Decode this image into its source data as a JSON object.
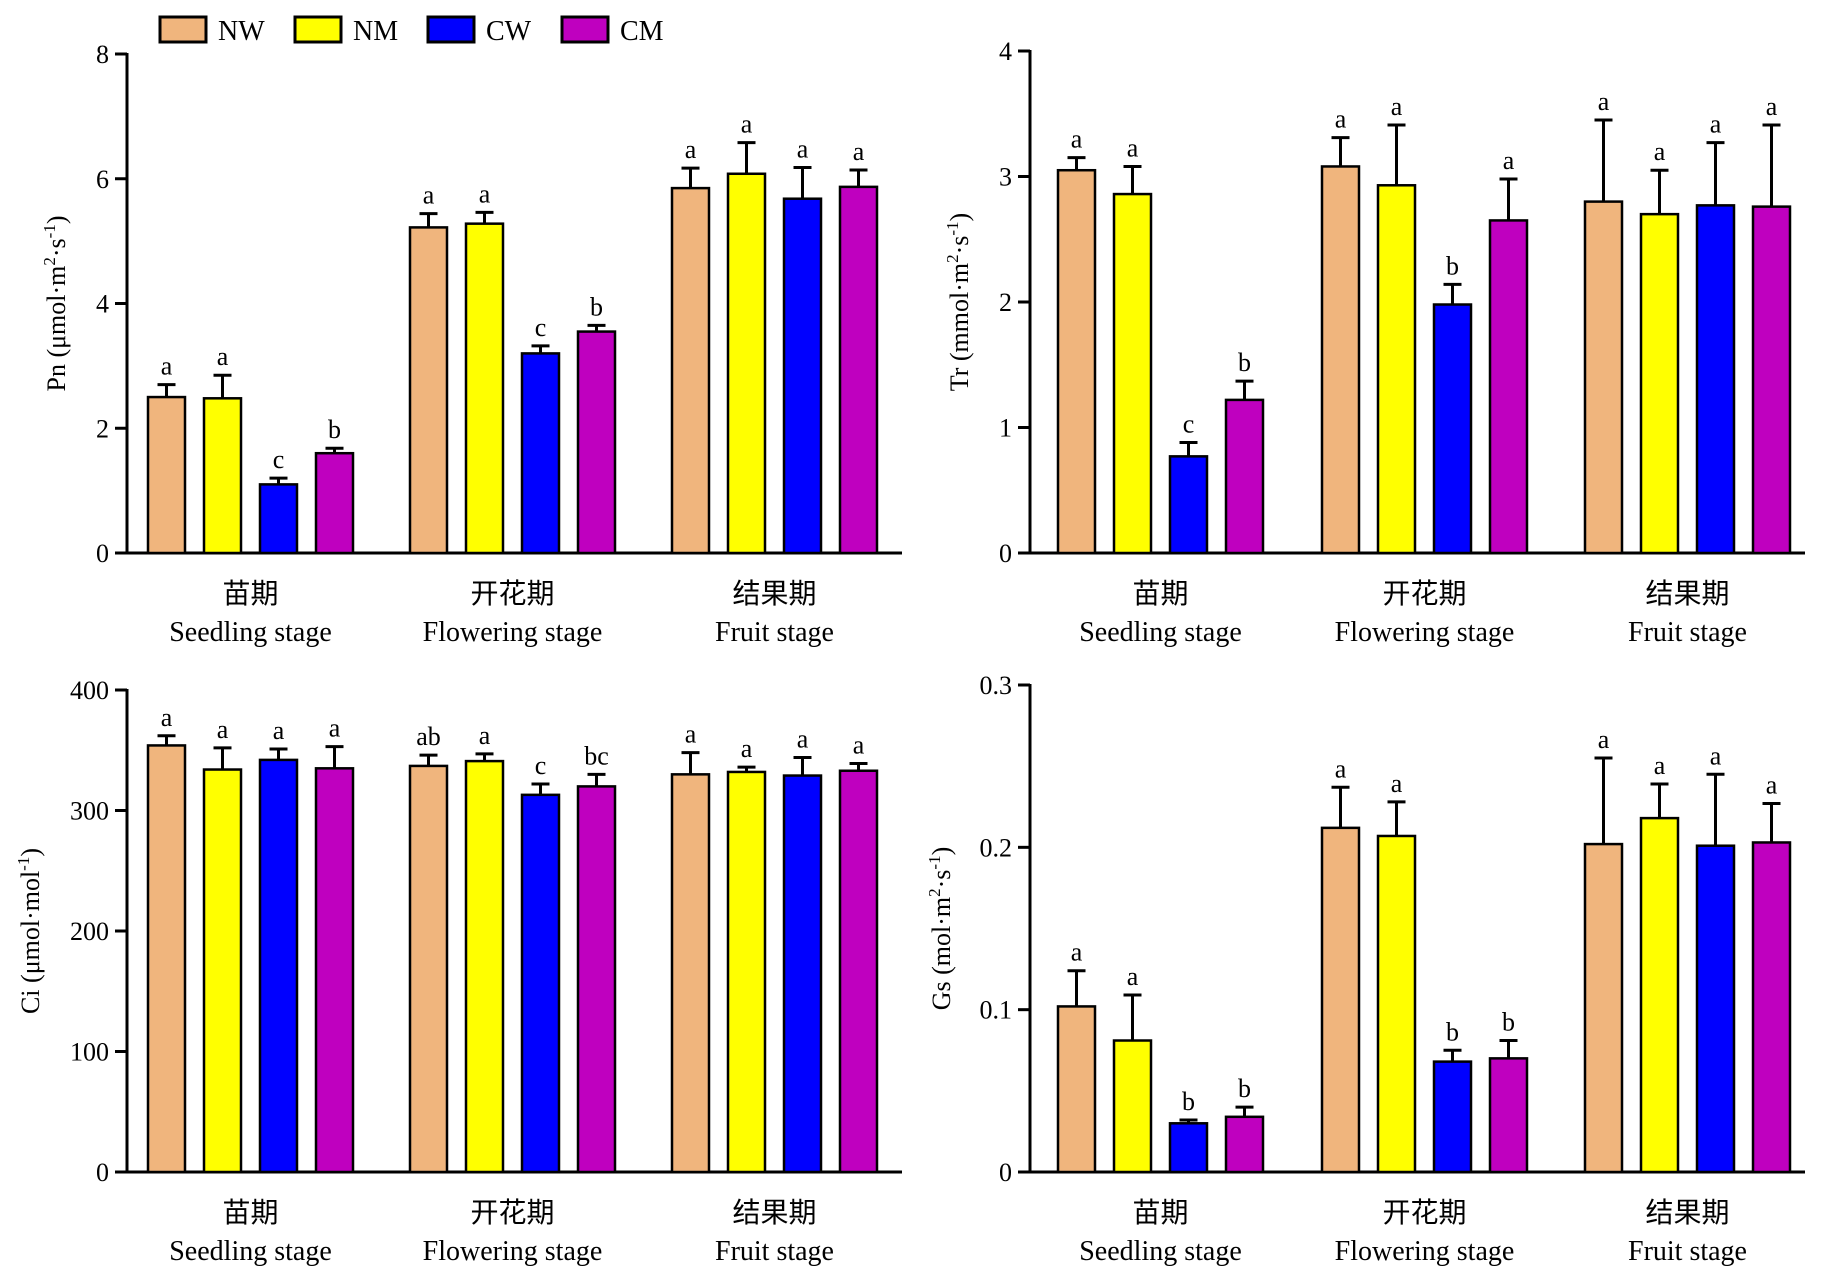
{
  "legend": [
    {
      "name": "NW",
      "color": "#F0B57D"
    },
    {
      "name": "NM",
      "color": "#FFFF00"
    },
    {
      "name": "CW",
      "color": "#0000FF"
    },
    {
      "name": "CM",
      "color": "#BF00BF"
    }
  ],
  "chart_data": [
    {
      "type": "bar",
      "title": "",
      "ylabel": "Pn (μmol·m²·s⁻¹)",
      "ylabel_parts": {
        "main": "Pn (μmol·m",
        "sup1": "2",
        "mid": "·s",
        "sup2": "-1",
        "end": ")"
      },
      "ylim": [
        0,
        8
      ],
      "yticks": [
        0,
        2,
        4,
        6,
        8
      ],
      "ytick_labels": [
        "0",
        "2",
        "4",
        "6",
        "8"
      ],
      "categories_cn": [
        "苗期",
        "开花期",
        "结果期"
      ],
      "categories": [
        "Seedling stage",
        "Flowering stage",
        "Fruit stage"
      ],
      "series": [
        {
          "name": "NW",
          "values": [
            2.5,
            5.22,
            5.85
          ],
          "errors": [
            0.2,
            0.22,
            0.32
          ],
          "letters": [
            "a",
            "a",
            "a"
          ]
        },
        {
          "name": "NM",
          "values": [
            2.48,
            5.28,
            6.08
          ],
          "errors": [
            0.37,
            0.18,
            0.5
          ],
          "letters": [
            "a",
            "a",
            "a"
          ]
        },
        {
          "name": "CW",
          "values": [
            1.1,
            3.2,
            5.68
          ],
          "errors": [
            0.1,
            0.12,
            0.5
          ],
          "letters": [
            "c",
            "c",
            "a"
          ]
        },
        {
          "name": "CM",
          "values": [
            1.6,
            3.55,
            5.87
          ],
          "errors": [
            0.08,
            0.1,
            0.27
          ],
          "letters": [
            "b",
            "b",
            "a"
          ]
        }
      ]
    },
    {
      "type": "bar",
      "title": "",
      "ylabel": "Tr (mmol·m²·s⁻¹)",
      "ylabel_parts": {
        "main": "Tr (mmol·m",
        "sup1": "2",
        "mid": "·s",
        "sup2": "-1",
        "end": ")"
      },
      "ylim": [
        0,
        4
      ],
      "yticks": [
        0,
        1,
        2,
        3,
        4
      ],
      "ytick_labels": [
        "0",
        "1",
        "2",
        "3",
        "4"
      ],
      "categories_cn": [
        "苗期",
        "开花期",
        "结果期"
      ],
      "categories": [
        "Seedling stage",
        "Flowering stage",
        "Fruit stage"
      ],
      "series": [
        {
          "name": "NW",
          "values": [
            3.05,
            3.08,
            2.8
          ],
          "errors": [
            0.1,
            0.23,
            0.65
          ],
          "letters": [
            "a",
            "a",
            "a"
          ]
        },
        {
          "name": "NM",
          "values": [
            2.86,
            2.93,
            2.7
          ],
          "errors": [
            0.22,
            0.48,
            0.35
          ],
          "letters": [
            "a",
            "a",
            "a"
          ]
        },
        {
          "name": "CW",
          "values": [
            0.77,
            1.98,
            2.77
          ],
          "errors": [
            0.11,
            0.16,
            0.5
          ],
          "letters": [
            "c",
            "b",
            "a"
          ]
        },
        {
          "name": "CM",
          "values": [
            1.22,
            2.65,
            2.76
          ],
          "errors": [
            0.15,
            0.33,
            0.65
          ],
          "letters": [
            "b",
            "a",
            "a"
          ]
        }
      ]
    },
    {
      "type": "bar",
      "title": "",
      "ylabel": "Ci (μmol·mol⁻¹)",
      "ylabel_parts": {
        "main": "Ci (μmol·mol",
        "sup1": "",
        "mid": "",
        "sup2": "-1",
        "end": ")"
      },
      "ylim": [
        0,
        400
      ],
      "yticks": [
        0,
        100,
        200,
        300,
        400
      ],
      "ytick_labels": [
        "0",
        "100",
        "200",
        "300",
        "400"
      ],
      "categories_cn": [
        "苗期",
        "开花期",
        "结果期"
      ],
      "categories": [
        "Seedling stage",
        "Flowering stage",
        "Fruit stage"
      ],
      "series": [
        {
          "name": "NW",
          "values": [
            354,
            337,
            330
          ],
          "errors": [
            8,
            9,
            18
          ],
          "letters": [
            "a",
            "ab",
            "a"
          ]
        },
        {
          "name": "NM",
          "values": [
            334,
            341,
            332
          ],
          "errors": [
            18,
            6,
            4
          ],
          "letters": [
            "a",
            "a",
            "a"
          ]
        },
        {
          "name": "CW",
          "values": [
            342,
            313,
            329
          ],
          "errors": [
            9,
            9,
            15
          ],
          "letters": [
            "a",
            "c",
            "a"
          ]
        },
        {
          "name": "CM",
          "values": [
            335,
            320,
            333
          ],
          "errors": [
            18,
            10,
            6
          ],
          "letters": [
            "a",
            "bc",
            "a"
          ]
        }
      ]
    },
    {
      "type": "bar",
      "title": "",
      "ylabel": "Gs (mol·m²·s⁻¹)",
      "ylabel_parts": {
        "main": "Gs (mol·m",
        "sup1": "2",
        "mid": "·s",
        "sup2": "-1",
        "end": ")"
      },
      "ylim": [
        0,
        0.3
      ],
      "yticks": [
        0,
        0.1,
        0.2,
        0.3
      ],
      "ytick_labels": [
        "0",
        "0.1",
        "0.2",
        "0.3"
      ],
      "categories_cn": [
        "苗期",
        "开花期",
        "结果期"
      ],
      "categories": [
        "Seedling stage",
        "Flowering stage",
        "Fruit stage"
      ],
      "series": [
        {
          "name": "NW",
          "values": [
            0.102,
            0.212,
            0.202
          ],
          "errors": [
            0.022,
            0.025,
            0.053
          ],
          "letters": [
            "a",
            "a",
            "a"
          ]
        },
        {
          "name": "NM",
          "values": [
            0.081,
            0.207,
            0.218
          ],
          "errors": [
            0.028,
            0.021,
            0.021
          ],
          "letters": [
            "a",
            "a",
            "a"
          ]
        },
        {
          "name": "CW",
          "values": [
            0.03,
            0.068,
            0.201
          ],
          "errors": [
            0.002,
            0.007,
            0.044
          ],
          "letters": [
            "b",
            "b",
            "a"
          ]
        },
        {
          "name": "CM",
          "values": [
            0.034,
            0.07,
            0.203
          ],
          "errors": [
            0.006,
            0.011,
            0.024
          ],
          "letters": [
            "b",
            "b",
            "a"
          ]
        }
      ]
    }
  ]
}
